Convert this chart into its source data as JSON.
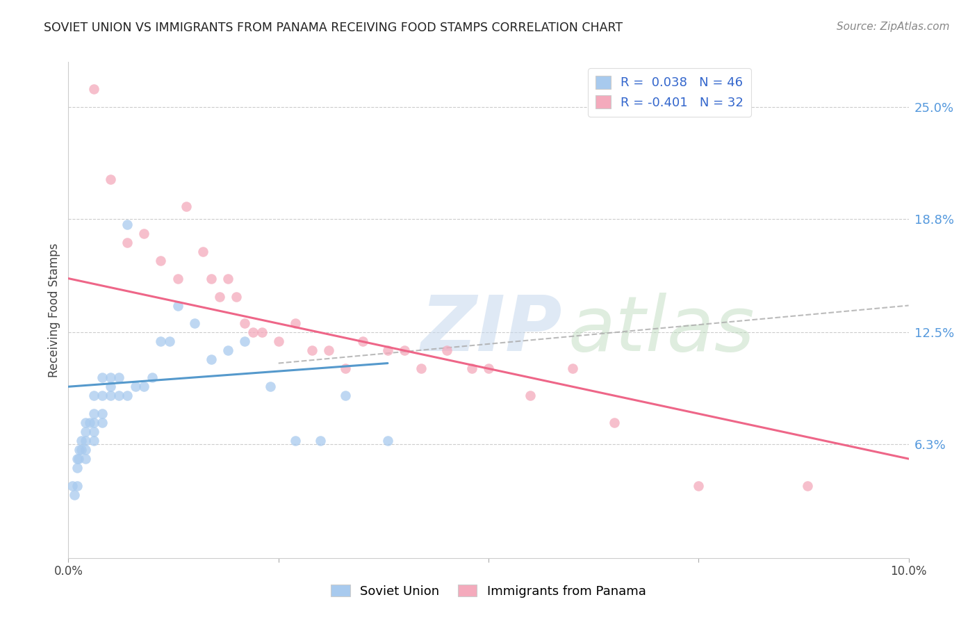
{
  "title": "SOVIET UNION VS IMMIGRANTS FROM PANAMA RECEIVING FOOD STAMPS CORRELATION CHART",
  "source": "Source: ZipAtlas.com",
  "ylabel": "Receiving Food Stamps",
  "yticks": [
    "6.3%",
    "12.5%",
    "18.8%",
    "25.0%"
  ],
  "ytick_vals": [
    0.063,
    0.125,
    0.188,
    0.25
  ],
  "xlim": [
    0.0,
    0.1
  ],
  "ylim": [
    0.0,
    0.275
  ],
  "legend_blue_r": "R =  0.038",
  "legend_blue_n": "N = 46",
  "legend_pink_r": "R = -0.401",
  "legend_pink_n": "N = 32",
  "soviet_x": [
    0.0005,
    0.0007,
    0.001,
    0.001,
    0.001,
    0.0012,
    0.0013,
    0.0015,
    0.0015,
    0.002,
    0.002,
    0.002,
    0.002,
    0.002,
    0.0025,
    0.003,
    0.003,
    0.003,
    0.003,
    0.003,
    0.004,
    0.004,
    0.004,
    0.004,
    0.005,
    0.005,
    0.005,
    0.006,
    0.006,
    0.007,
    0.007,
    0.008,
    0.009,
    0.01,
    0.011,
    0.012,
    0.013,
    0.015,
    0.017,
    0.019,
    0.021,
    0.024,
    0.027,
    0.03,
    0.033,
    0.038
  ],
  "soviet_y": [
    0.04,
    0.035,
    0.04,
    0.05,
    0.055,
    0.055,
    0.06,
    0.06,
    0.065,
    0.055,
    0.06,
    0.065,
    0.07,
    0.075,
    0.075,
    0.065,
    0.07,
    0.075,
    0.08,
    0.09,
    0.075,
    0.08,
    0.09,
    0.1,
    0.09,
    0.095,
    0.1,
    0.09,
    0.1,
    0.09,
    0.185,
    0.095,
    0.095,
    0.1,
    0.12,
    0.12,
    0.14,
    0.13,
    0.11,
    0.115,
    0.12,
    0.095,
    0.065,
    0.065,
    0.09,
    0.065
  ],
  "panama_x": [
    0.003,
    0.005,
    0.007,
    0.009,
    0.011,
    0.013,
    0.014,
    0.016,
    0.017,
    0.018,
    0.019,
    0.02,
    0.021,
    0.022,
    0.023,
    0.025,
    0.027,
    0.029,
    0.031,
    0.033,
    0.035,
    0.038,
    0.04,
    0.042,
    0.045,
    0.048,
    0.05,
    0.055,
    0.06,
    0.065,
    0.075,
    0.088
  ],
  "panama_y": [
    0.26,
    0.21,
    0.175,
    0.18,
    0.165,
    0.155,
    0.195,
    0.17,
    0.155,
    0.145,
    0.155,
    0.145,
    0.13,
    0.125,
    0.125,
    0.12,
    0.13,
    0.115,
    0.115,
    0.105,
    0.12,
    0.115,
    0.115,
    0.105,
    0.115,
    0.105,
    0.105,
    0.09,
    0.105,
    0.075,
    0.04,
    0.04
  ],
  "blue_color": "#A8CAEE",
  "pink_color": "#F4AABC",
  "blue_line_color": "#5599CC",
  "pink_line_color": "#EE6688",
  "dash_line_color": "#AAAAAA",
  "grid_color": "#CCCCCC",
  "background_color": "#FFFFFF",
  "blue_line_x": [
    0.0,
    0.038
  ],
  "blue_line_y": [
    0.095,
    0.108
  ],
  "dash_line_x": [
    0.025,
    0.1
  ],
  "dash_line_y": [
    0.108,
    0.14
  ],
  "pink_line_x": [
    0.0,
    0.1
  ],
  "pink_line_y": [
    0.155,
    0.055
  ]
}
